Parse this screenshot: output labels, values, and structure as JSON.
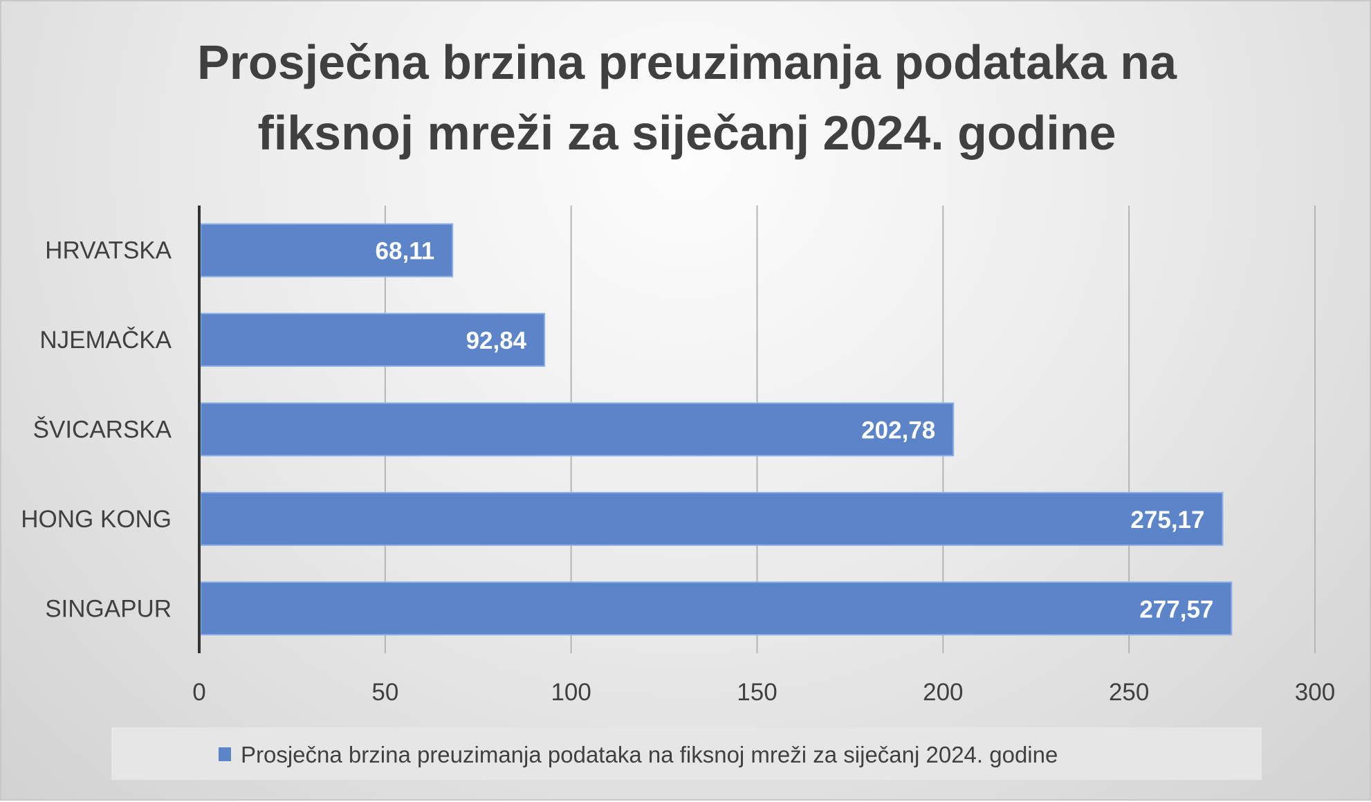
{
  "chart_data": {
    "type": "bar",
    "orientation": "horizontal",
    "title": "Prosječna brzina preuzimanja podataka na fiksnoj mreži za siječanj 2024. godine",
    "title_lines": [
      "Prosječna brzina preuzimanja podataka na",
      "fiksnoj mreži za siječanj 2024. godine"
    ],
    "categories": [
      "HRVATSKA",
      "NJEMAČKA",
      "ŠVICARSKA",
      "HONG KONG",
      "SINGAPUR"
    ],
    "values": [
      68.11,
      92.84,
      202.78,
      275.17,
      277.57
    ],
    "data_labels": [
      "68,11",
      "92,84",
      "202,78",
      "275,17",
      "277,57"
    ],
    "series": [
      {
        "name": "Prosječna brzina preuzimanja podataka na fiksnoj mreži za siječanj 2024. godine",
        "values": [
          68.11,
          92.84,
          202.78,
          275.17,
          277.57
        ]
      }
    ],
    "xlim": [
      0,
      300
    ],
    "xticks": [
      "0",
      "50",
      "100",
      "150",
      "200",
      "250",
      "300"
    ],
    "xlabel": "",
    "ylabel": "",
    "grid": "vertical",
    "legend_position": "bottom",
    "bar_color": "#5b84c9"
  }
}
